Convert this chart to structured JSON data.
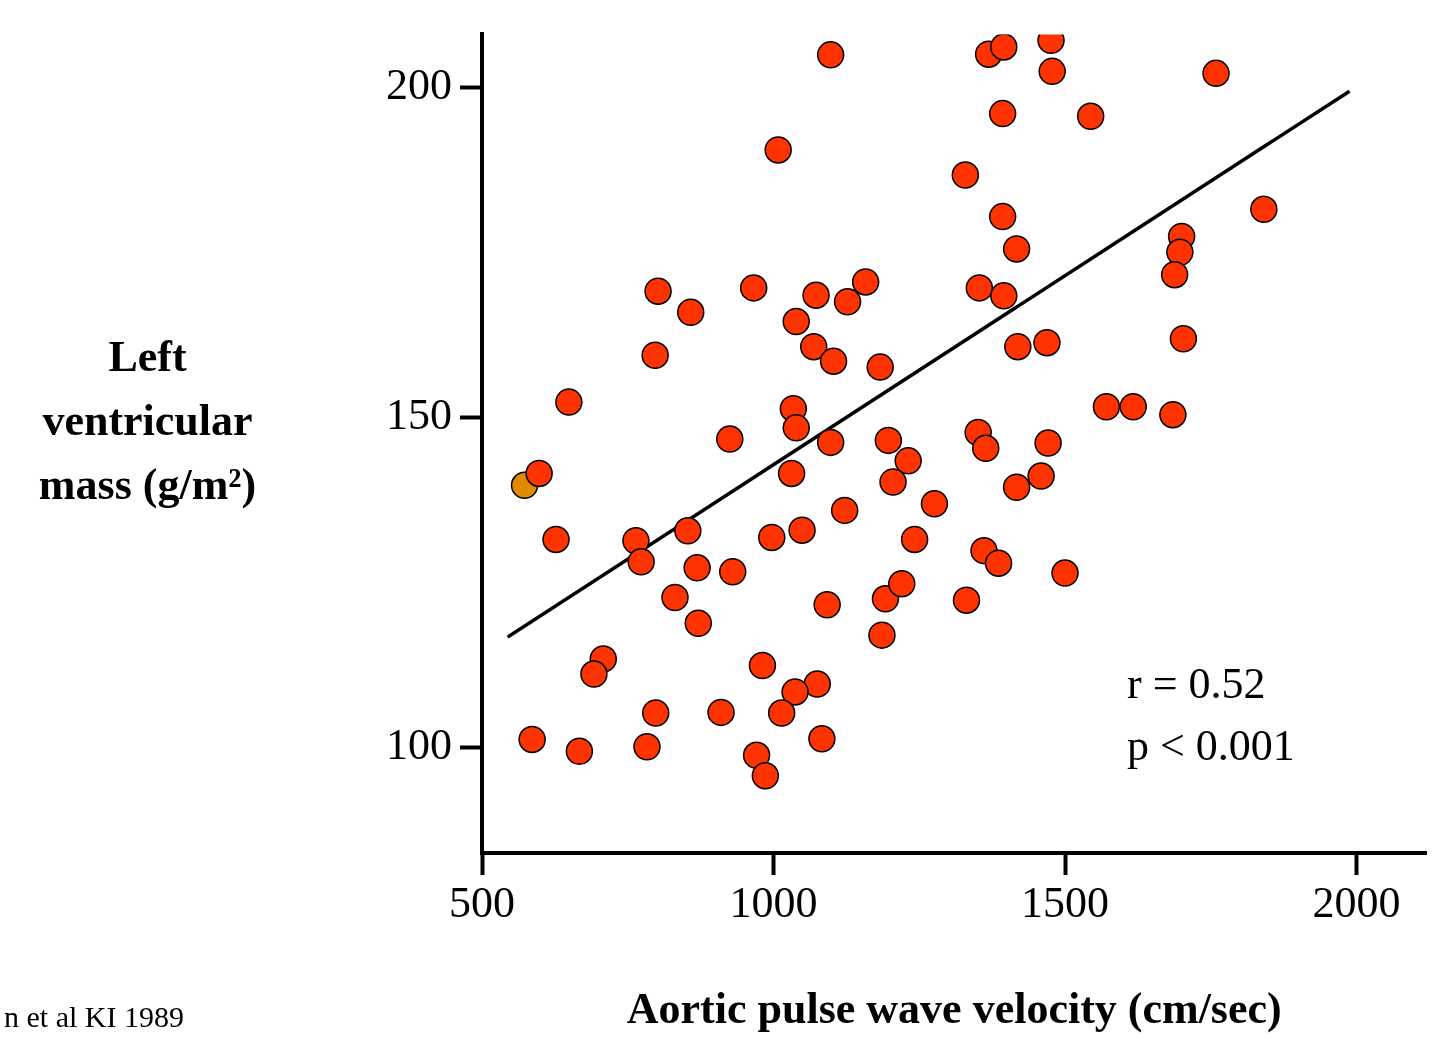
{
  "chart_data": {
    "type": "scatter",
    "xlabel": "Aortic pulse wave velocity (cm/sec)",
    "ylabel": "Left ventricular mass (g/m²)",
    "annotations": [
      "r = 0.52",
      "p < 0.001",
      "n et al KI 1989"
    ],
    "xlim": [
      500,
      2120
    ],
    "ylim": [
      84,
      208
    ],
    "xticks": [
      500,
      1000,
      1500,
      2000
    ],
    "yticks": [
      100,
      150,
      200
    ],
    "grid": false,
    "legend": false,
    "marker": "circle",
    "series": [
      {
        "color": "#ff3300",
        "x": [
          1098,
          1008,
          1369,
          1395,
          1476,
          1478,
          1393,
          1544,
          1759,
          1329,
          1393,
          1841,
          1417,
          1700,
          1697,
          1688,
          802,
          966,
          1073,
          1127,
          1158,
          1353,
          1395,
          858,
          1039,
          1069,
          1103,
          797,
          1183,
          1419,
          1469,
          1703,
          649,
          1571,
          1617,
          1685,
          1034,
          1039,
          925,
          1098,
          1197,
          1231,
          1351,
          1364,
          1471,
          598,
          1031,
          1205,
          1417,
          1459,
          1122,
          1276,
          627,
          764,
          853,
          997,
          1049,
          1242,
          773,
          869,
          930,
          1361,
          1386,
          1500,
          831,
          871,
          1092,
          1192,
          1220,
          1331,
          1186,
          708,
          692,
          981,
          1075,
          1037,
          798,
          910,
          1014,
          586,
          667,
          783,
          1083,
          971,
          986
        ],
        "values": [
          204.9,
          190.5,
          205.0,
          206.1,
          207.1,
          202.4,
          196.0,
          195.6,
          202.1,
          186.7,
          180.4,
          181.5,
          175.5,
          177.4,
          175.0,
          171.6,
          169.1,
          169.6,
          168.5,
          167.5,
          170.5,
          169.6,
          168.4,
          165.9,
          164.5,
          160.7,
          158.5,
          159.4,
          157.6,
          160.7,
          161.3,
          161.9,
          152.3,
          151.6,
          151.6,
          150.4,
          151.3,
          148.4,
          146.7,
          146.2,
          146.5,
          143.4,
          147.7,
          145.3,
          146.1,
          141.5,
          141.5,
          140.2,
          139.4,
          141.1,
          135.9,
          136.9,
          131.5,
          131.3,
          132.8,
          131.8,
          132.9,
          131.5,
          128.1,
          127.2,
          126.6,
          129.8,
          127.9,
          126.4,
          122.7,
          118.8,
          121.6,
          122.5,
          124.8,
          122.3,
          117.0,
          113.4,
          111.1,
          112.4,
          109.6,
          108.4,
          105.2,
          105.3,
          105.2,
          101.2,
          99.4,
          100.1,
          101.3,
          98.8,
          95.7
        ]
      },
      {
        "color": "#e08a00",
        "x": [
          573
        ],
        "values": [
          139.7
        ]
      },
      {
        "type": "line",
        "color": "#000000",
        "marker": "none",
        "line_style": "solid",
        "x": [
          544,
          1988
        ],
        "values": [
          116.7,
          199.4
        ]
      }
    ]
  }
}
